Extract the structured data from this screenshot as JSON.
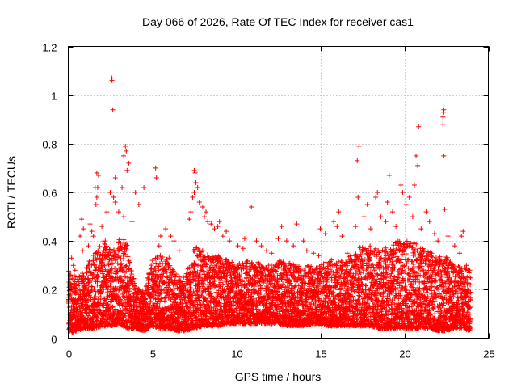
{
  "chart_data": {
    "type": "scatter",
    "title": "Day 066 of 2026, Rate Of TEC Index for receiver cas1",
    "xlabel": "GPS time / hours",
    "ylabel": "ROTI / TECUs",
    "xlim": [
      0,
      25
    ],
    "ylim": [
      0,
      1.2
    ],
    "xticks": [
      0,
      5,
      10,
      15,
      20,
      25
    ],
    "xtick_labels": [
      "0",
      "5",
      "10",
      "15",
      "20",
      "25"
    ],
    "yticks": [
      0,
      0.2,
      0.4,
      0.6,
      0.8,
      1.0,
      1.2
    ],
    "ytick_labels": [
      "0",
      "0.2",
      "0.4",
      "0.6",
      "0.8",
      "1",
      "1.2"
    ],
    "grid": true,
    "marker": "plus",
    "color": "#ff0000",
    "series": [
      {
        "name": "ROTI",
        "points": [
          [
            2.6,
            1.07
          ],
          [
            2.6,
            1.06
          ],
          [
            2.65,
            0.94
          ],
          [
            3.4,
            0.79
          ],
          [
            3.45,
            0.77
          ],
          [
            3.3,
            0.75
          ],
          [
            3.6,
            0.72
          ],
          [
            3.5,
            0.69
          ],
          [
            2.8,
            0.66
          ],
          [
            1.7,
            0.68
          ],
          [
            1.8,
            0.67
          ],
          [
            1.75,
            0.62
          ],
          [
            1.6,
            0.62
          ],
          [
            1.7,
            0.58
          ],
          [
            1.65,
            0.55
          ],
          [
            2.5,
            0.6
          ],
          [
            2.7,
            0.58
          ],
          [
            2.8,
            0.56
          ],
          [
            3.2,
            0.62
          ],
          [
            3.0,
            0.52
          ],
          [
            3.3,
            0.5
          ],
          [
            4.0,
            0.6
          ],
          [
            4.5,
            0.62
          ],
          [
            4.2,
            0.55
          ],
          [
            3.8,
            0.48
          ],
          [
            0.8,
            0.49
          ],
          [
            0.9,
            0.45
          ],
          [
            0.7,
            0.42
          ],
          [
            0.85,
            0.36
          ],
          [
            1.2,
            0.38
          ],
          [
            1.3,
            0.47
          ],
          [
            1.4,
            0.44
          ],
          [
            1.5,
            0.42
          ],
          [
            2.0,
            0.46
          ],
          [
            2.2,
            0.4
          ],
          [
            2.3,
            0.52
          ],
          [
            0.2,
            0.33
          ],
          [
            0.3,
            0.3
          ],
          [
            0.4,
            0.28
          ],
          [
            0.1,
            0.26
          ],
          [
            5.2,
            0.7
          ],
          [
            5.25,
            0.66
          ],
          [
            5.5,
            0.42
          ],
          [
            5.8,
            0.45
          ],
          [
            6.1,
            0.42
          ],
          [
            5.4,
            0.38
          ],
          [
            6.3,
            0.4
          ],
          [
            6.6,
            0.36
          ],
          [
            6.0,
            0.33
          ],
          [
            7.5,
            0.69
          ],
          [
            7.55,
            0.68
          ],
          [
            7.6,
            0.64
          ],
          [
            7.7,
            0.62
          ],
          [
            7.5,
            0.6
          ],
          [
            7.4,
            0.58
          ],
          [
            7.8,
            0.56
          ],
          [
            8.0,
            0.54
          ],
          [
            8.2,
            0.52
          ],
          [
            8.1,
            0.5
          ],
          [
            7.2,
            0.49
          ],
          [
            7.3,
            0.52
          ],
          [
            8.3,
            0.48
          ],
          [
            8.5,
            0.47
          ],
          [
            8.9,
            0.46
          ],
          [
            9.0,
            0.48
          ],
          [
            9.2,
            0.42
          ],
          [
            8.7,
            0.45
          ],
          [
            9.4,
            0.44
          ],
          [
            9.6,
            0.4
          ],
          [
            10.1,
            0.38
          ],
          [
            10.4,
            0.37
          ],
          [
            10.9,
            0.54
          ],
          [
            10.5,
            0.41
          ],
          [
            11.2,
            0.4
          ],
          [
            11.5,
            0.38
          ],
          [
            11.8,
            0.36
          ],
          [
            12.1,
            0.35
          ],
          [
            12.7,
            0.46
          ],
          [
            12.5,
            0.41
          ],
          [
            13.0,
            0.4
          ],
          [
            13.4,
            0.38
          ],
          [
            13.6,
            0.47
          ],
          [
            14.0,
            0.4
          ],
          [
            14.2,
            0.36
          ],
          [
            14.6,
            0.35
          ],
          [
            14.9,
            0.34
          ],
          [
            15.0,
            0.45
          ],
          [
            15.3,
            0.43
          ],
          [
            15.8,
            0.48
          ],
          [
            16.0,
            0.46
          ],
          [
            16.1,
            0.52
          ],
          [
            16.3,
            0.42
          ],
          [
            16.6,
            0.35
          ],
          [
            17.1,
            0.46
          ],
          [
            17.3,
            0.79
          ],
          [
            17.2,
            0.73
          ],
          [
            17.25,
            0.58
          ],
          [
            17.6,
            0.5
          ],
          [
            17.8,
            0.55
          ],
          [
            18.0,
            0.45
          ],
          [
            18.3,
            0.58
          ],
          [
            18.4,
            0.6
          ],
          [
            18.6,
            0.5
          ],
          [
            18.9,
            0.48
          ],
          [
            19.1,
            0.67
          ],
          [
            19.0,
            0.56
          ],
          [
            19.3,
            0.52
          ],
          [
            19.5,
            0.46
          ],
          [
            19.8,
            0.63
          ],
          [
            19.9,
            0.6
          ],
          [
            20.1,
            0.55
          ],
          [
            20.3,
            0.58
          ],
          [
            20.6,
            0.63
          ],
          [
            20.7,
            0.75
          ],
          [
            20.8,
            0.71
          ],
          [
            20.85,
            0.87
          ],
          [
            20.5,
            0.5
          ],
          [
            21.0,
            0.45
          ],
          [
            21.3,
            0.52
          ],
          [
            21.5,
            0.48
          ],
          [
            21.8,
            0.43
          ],
          [
            22.0,
            0.4
          ],
          [
            22.35,
            0.94
          ],
          [
            22.35,
            0.93
          ],
          [
            22.3,
            0.91
          ],
          [
            22.3,
            0.88
          ],
          [
            22.35,
            0.75
          ],
          [
            22.4,
            0.53
          ],
          [
            22.6,
            0.42
          ],
          [
            23.0,
            0.38
          ],
          [
            23.3,
            0.35
          ],
          [
            23.5,
            0.44
          ],
          [
            23.4,
            0.42
          ],
          [
            23.7,
            0.3
          ],
          [
            23.9,
            0.28
          ]
        ],
        "bulk_envelope": {
          "x": [
            0,
            0.5,
            1,
            1.5,
            2,
            2.5,
            3,
            3.5,
            4,
            4.5,
            5,
            5.5,
            6,
            6.5,
            7,
            7.5,
            8,
            8.5,
            9,
            9.5,
            10,
            10.5,
            11,
            11.5,
            12,
            12.5,
            13,
            13.5,
            14,
            14.5,
            15,
            15.5,
            16,
            16.5,
            17,
            17.5,
            18,
            18.5,
            19,
            19.5,
            20,
            20.5,
            21,
            21.5,
            22,
            22.5,
            23,
            23.5,
            23.9
          ],
          "y_low": [
            0.02,
            0.03,
            0.04,
            0.04,
            0.05,
            0.05,
            0.06,
            0.04,
            0.04,
            0.03,
            0.05,
            0.04,
            0.04,
            0.03,
            0.03,
            0.04,
            0.05,
            0.05,
            0.05,
            0.06,
            0.06,
            0.06,
            0.06,
            0.06,
            0.06,
            0.06,
            0.05,
            0.05,
            0.05,
            0.06,
            0.06,
            0.05,
            0.05,
            0.05,
            0.05,
            0.05,
            0.05,
            0.04,
            0.04,
            0.04,
            0.04,
            0.04,
            0.04,
            0.04,
            0.03,
            0.03,
            0.04,
            0.04,
            0.03
          ],
          "y_high": [
            0.28,
            0.25,
            0.28,
            0.36,
            0.4,
            0.38,
            0.42,
            0.4,
            0.22,
            0.2,
            0.32,
            0.35,
            0.32,
            0.26,
            0.26,
            0.38,
            0.36,
            0.34,
            0.34,
            0.33,
            0.3,
            0.32,
            0.32,
            0.31,
            0.3,
            0.32,
            0.31,
            0.31,
            0.3,
            0.3,
            0.3,
            0.32,
            0.33,
            0.32,
            0.36,
            0.38,
            0.38,
            0.36,
            0.38,
            0.4,
            0.4,
            0.4,
            0.38,
            0.36,
            0.34,
            0.34,
            0.3,
            0.3,
            0.28
          ]
        }
      }
    ]
  }
}
